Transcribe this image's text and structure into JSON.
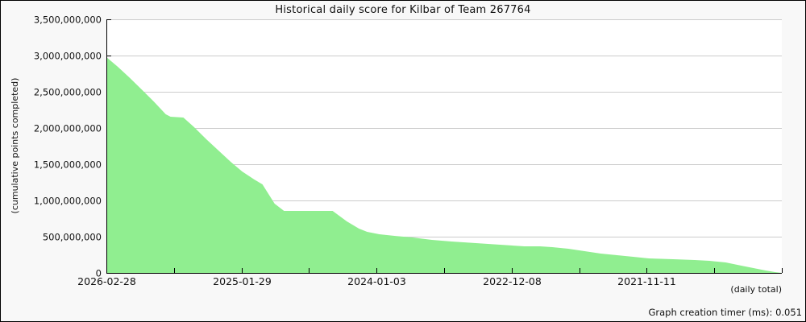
{
  "title": "Historical daily score for Kilbar of Team 267764",
  "y_axis": {
    "label": "(cumulative points completed)",
    "ticks": [
      {
        "label": "3,500,000,000",
        "value": 3500000000
      },
      {
        "label": "3,000,000,000",
        "value": 3000000000
      },
      {
        "label": "2,500,000,000",
        "value": 2500000000
      },
      {
        "label": "2,000,000,000",
        "value": 2000000000
      },
      {
        "label": "1,500,000,000",
        "value": 1500000000
      },
      {
        "label": "1,000,000,000",
        "value": 1000000000
      },
      {
        "label": "500,000,000",
        "value": 500000000
      },
      {
        "label": "0",
        "value": 0
      }
    ]
  },
  "x_axis": {
    "note": "(daily total)",
    "ticks": [
      {
        "f": 0.0,
        "label": "2026-02-28"
      },
      {
        "f": 0.1,
        "label": ""
      },
      {
        "f": 0.2,
        "label": "2025-01-29"
      },
      {
        "f": 0.3,
        "label": ""
      },
      {
        "f": 0.4,
        "label": "2024-01-03"
      },
      {
        "f": 0.5,
        "label": ""
      },
      {
        "f": 0.6,
        "label": "2022-12-08"
      },
      {
        "f": 0.7,
        "label": ""
      },
      {
        "f": 0.8,
        "label": "2021-11-11"
      },
      {
        "f": 0.9,
        "label": ""
      },
      {
        "f": 1.0,
        "label": ""
      }
    ]
  },
  "footer": {
    "timer_text": "Graph creation timer (ms): 0.051"
  },
  "colors": {
    "area": "#90ee90",
    "grid": "#cccccc",
    "axis": "#000000",
    "plot_bg": "#ffffff",
    "fig_bg": "#f8f8f8",
    "text": "#111111"
  },
  "chart_data": {
    "type": "area",
    "title": "Historical daily score for Kilbar of Team 267764",
    "ylabel": "(cumulative points completed)",
    "xlabel": "(daily total)",
    "ylim": [
      0,
      3500000000
    ],
    "grid": "horizontal",
    "legend": "none",
    "x_tick_labels": [
      "2026-02-28",
      "2025-01-29",
      "2024-01-03",
      "2022-12-08",
      "2021-11-11"
    ],
    "time_direction": "newest date on the left, oldest on the right",
    "values_at_labeled_ticks": {
      "2026-02-28": 2978000000,
      "2025-01-29": 1400000000,
      "2024-01-03": 533000000,
      "2022-12-08": 378000000,
      "2021-11-11": 200000000
    },
    "series": [
      {
        "name": "cumulative points completed",
        "point_format": "[fraction_across_x_axis, value]",
        "points": [
          [
            0.0,
            2978000000
          ],
          [
            0.017,
            2844000000
          ],
          [
            0.035,
            2689000000
          ],
          [
            0.052,
            2533000000
          ],
          [
            0.07,
            2367000000
          ],
          [
            0.088,
            2189000000
          ],
          [
            0.095,
            2156000000
          ],
          [
            0.114,
            2144000000
          ],
          [
            0.13,
            2011000000
          ],
          [
            0.148,
            1844000000
          ],
          [
            0.166,
            1689000000
          ],
          [
            0.184,
            1533000000
          ],
          [
            0.201,
            1400000000
          ],
          [
            0.219,
            1289000000
          ],
          [
            0.231,
            1222000000
          ],
          [
            0.249,
            956000000
          ],
          [
            0.263,
            856000000
          ],
          [
            0.335,
            856000000
          ],
          [
            0.356,
            711000000
          ],
          [
            0.374,
            611000000
          ],
          [
            0.386,
            567000000
          ],
          [
            0.404,
            533000000
          ],
          [
            0.428,
            510000000
          ],
          [
            0.452,
            490000000
          ],
          [
            0.482,
            456000000
          ],
          [
            0.511,
            433000000
          ],
          [
            0.547,
            411000000
          ],
          [
            0.583,
            389000000
          ],
          [
            0.619,
            367000000
          ],
          [
            0.642,
            367000000
          ],
          [
            0.66,
            356000000
          ],
          [
            0.684,
            333000000
          ],
          [
            0.708,
            300000000
          ],
          [
            0.732,
            267000000
          ],
          [
            0.756,
            244000000
          ],
          [
            0.78,
            222000000
          ],
          [
            0.803,
            200000000
          ],
          [
            0.839,
            189000000
          ],
          [
            0.871,
            178000000
          ],
          [
            0.893,
            167000000
          ],
          [
            0.917,
            144000000
          ],
          [
            0.94,
            100000000
          ],
          [
            0.958,
            67000000
          ],
          [
            0.976,
            33000000
          ],
          [
            0.99,
            11000000
          ],
          [
            1.0,
            0
          ]
        ]
      }
    ]
  }
}
